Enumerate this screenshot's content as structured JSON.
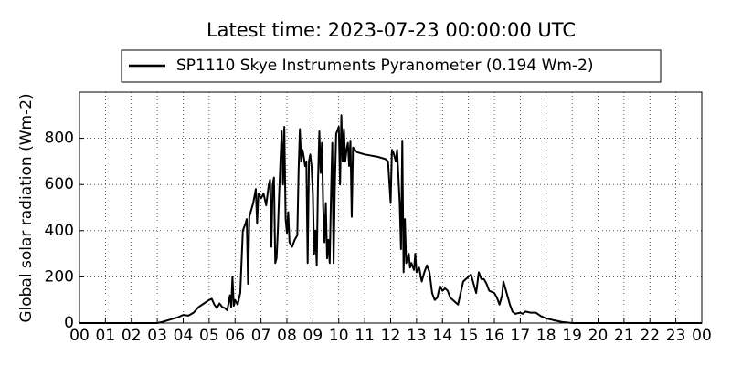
{
  "chart_data": {
    "type": "line",
    "title": "Latest time: 2023-07-23 00:00:00 UTC",
    "y_label": "Global solar radiation (Wm-2)",
    "xlim": [
      0,
      24
    ],
    "ylim": [
      0,
      1000
    ],
    "xticks": [
      {
        "value": 0,
        "label": "00"
      },
      {
        "value": 1,
        "label": "01"
      },
      {
        "value": 2,
        "label": "02"
      },
      {
        "value": 3,
        "label": "03"
      },
      {
        "value": 4,
        "label": "04"
      },
      {
        "value": 5,
        "label": "05"
      },
      {
        "value": 6,
        "label": "06"
      },
      {
        "value": 7,
        "label": "07"
      },
      {
        "value": 8,
        "label": "08"
      },
      {
        "value": 9,
        "label": "09"
      },
      {
        "value": 10,
        "label": "10"
      },
      {
        "value": 11,
        "label": "11"
      },
      {
        "value": 12,
        "label": "12"
      },
      {
        "value": 13,
        "label": "13"
      },
      {
        "value": 14,
        "label": "14"
      },
      {
        "value": 15,
        "label": "15"
      },
      {
        "value": 16,
        "label": "16"
      },
      {
        "value": 17,
        "label": "17"
      },
      {
        "value": 18,
        "label": "18"
      },
      {
        "value": 19,
        "label": "19"
      },
      {
        "value": 20,
        "label": "20"
      },
      {
        "value": 21,
        "label": "21"
      },
      {
        "value": 22,
        "label": "22"
      },
      {
        "value": 23,
        "label": "23"
      },
      {
        "value": 24,
        "label": "00"
      }
    ],
    "yticks": [
      0,
      200,
      400,
      600,
      800
    ],
    "grid": true,
    "legend": "top",
    "x": [
      0,
      3,
      3.2,
      3.5,
      3.8,
      4.0,
      4.2,
      4.4,
      4.6,
      4.8,
      5.0,
      5.1,
      5.2,
      5.3,
      5.4,
      5.5,
      5.6,
      5.7,
      5.8,
      5.85,
      5.9,
      5.95,
      6.0,
      6.1,
      6.2,
      6.3,
      6.4,
      6.45,
      6.5,
      6.55,
      6.7,
      6.8,
      6.85,
      6.9,
      7.0,
      7.1,
      7.2,
      7.3,
      7.35,
      7.4,
      7.45,
      7.5,
      7.55,
      7.6,
      7.65,
      7.7,
      7.75,
      7.8,
      7.85,
      7.9,
      7.95,
      8.0,
      8.05,
      8.1,
      8.2,
      8.3,
      8.4,
      8.45,
      8.5,
      8.55,
      8.6,
      8.65,
      8.7,
      8.75,
      8.8,
      8.85,
      8.9,
      8.95,
      9.0,
      9.05,
      9.1,
      9.15,
      9.2,
      9.25,
      9.3,
      9.35,
      9.4,
      9.45,
      9.5,
      9.55,
      9.6,
      9.65,
      9.7,
      9.75,
      9.8,
      9.85,
      9.9,
      10.0,
      10.05,
      10.1,
      10.15,
      10.2,
      10.25,
      10.3,
      10.35,
      10.4,
      10.45,
      10.5,
      10.55,
      10.7,
      11.0,
      11.5,
      11.8,
      11.9,
      12.0,
      12.05,
      12.1,
      12.2,
      12.25,
      12.35,
      12.4,
      12.45,
      12.5,
      12.55,
      12.6,
      12.7,
      12.75,
      12.8,
      12.9,
      12.95,
      13.0,
      13.1,
      13.2,
      13.3,
      13.4,
      13.5,
      13.6,
      13.7,
      13.8,
      13.9,
      14.0,
      14.1,
      14.2,
      14.3,
      14.5,
      14.6,
      14.7,
      14.8,
      15.0,
      15.1,
      15.2,
      15.3,
      15.4,
      15.5,
      15.6,
      15.7,
      15.8,
      16.0,
      16.1,
      16.2,
      16.3,
      16.35,
      16.45,
      16.6,
      16.7,
      16.8,
      17.0,
      17.1,
      17.2,
      17.4,
      17.6,
      17.8,
      18.0,
      18.3,
      18.6,
      19.0,
      24
    ],
    "series": [
      {
        "name": "SP1110 Skye Instruments Pyranometer (0.194 Wm-2)",
        "color": "#000000",
        "values": [
          0,
          0,
          5,
          15,
          25,
          35,
          32,
          45,
          70,
          85,
          100,
          105,
          80,
          65,
          85,
          70,
          65,
          55,
          120,
          70,
          200,
          75,
          100,
          80,
          130,
          400,
          430,
          450,
          170,
          460,
          520,
          580,
          430,
          560,
          540,
          560,
          510,
          600,
          620,
          330,
          600,
          630,
          260,
          280,
          400,
          560,
          700,
          830,
          600,
          850,
          450,
          390,
          480,
          350,
          330,
          360,
          380,
          660,
          840,
          700,
          750,
          720,
          680,
          700,
          260,
          700,
          730,
          680,
          560,
          300,
          400,
          250,
          620,
          830,
          650,
          780,
          500,
          350,
          520,
          280,
          360,
          260,
          550,
          780,
          260,
          600,
          820,
          850,
          600,
          900,
          700,
          840,
          700,
          750,
          780,
          680,
          790,
          460,
          760,
          740,
          730,
          720,
          710,
          700,
          520,
          750,
          740,
          700,
          750,
          520,
          320,
          790,
          220,
          450,
          260,
          300,
          240,
          260,
          230,
          300,
          220,
          240,
          180,
          220,
          250,
          220,
          130,
          100,
          110,
          160,
          140,
          150,
          140,
          110,
          90,
          80,
          130,
          180,
          200,
          210,
          170,
          130,
          220,
          190,
          190,
          170,
          140,
          130,
          110,
          80,
          120,
          180,
          140,
          80,
          50,
          40,
          45,
          40,
          50,
          45,
          45,
          30,
          20,
          12,
          5,
          0,
          0
        ]
      }
    ]
  }
}
